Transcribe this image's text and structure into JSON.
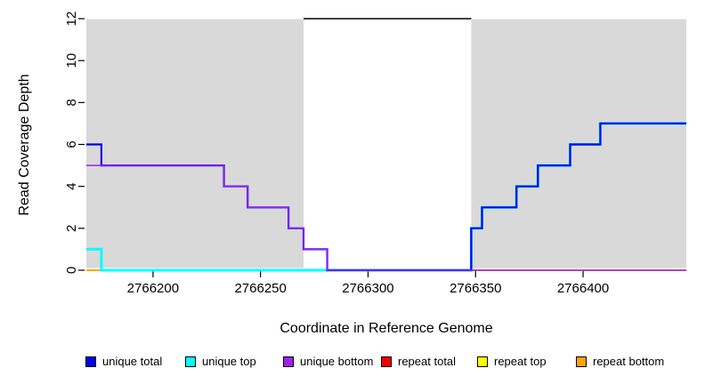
{
  "chart_data": {
    "type": "line",
    "subtype": "step-coverage",
    "title": "",
    "xlabel": "Coordinate in Reference Genome",
    "ylabel": "Read Coverage Depth",
    "xlim": [
      2766169,
      2766448
    ],
    "ylim": [
      0,
      12
    ],
    "x_ticks": [
      {
        "value": 2766200,
        "label": "2766200"
      },
      {
        "value": 2766250,
        "label": "2766250"
      },
      {
        "value": 2766300,
        "label": "2766300"
      },
      {
        "value": 2766350,
        "label": "2766350"
      },
      {
        "value": 2766400,
        "label": "2766400"
      }
    ],
    "y_ticks": [
      {
        "value": 0,
        "label": "0"
      },
      {
        "value": 2,
        "label": "2"
      },
      {
        "value": 4,
        "label": "4"
      },
      {
        "value": 6,
        "label": "6"
      },
      {
        "value": 8,
        "label": "8"
      },
      {
        "value": 10,
        "label": "10"
      },
      {
        "value": 12,
        "label": "12"
      }
    ],
    "grid": false,
    "background_color": "#ffffff",
    "shaded_regions": [
      {
        "start": 2766169,
        "end": 2766270,
        "color": "#d9d9d9"
      },
      {
        "start": 2766348,
        "end": 2766448,
        "color": "#d9d9d9"
      }
    ],
    "top_marker": {
      "y": 12,
      "start": 2766270,
      "end": 2766348,
      "color": "#000000"
    },
    "series": [
      {
        "key": "repeat_total",
        "name": "repeat total",
        "color": "#ee0000",
        "steps": [
          [
            2766169,
            0
          ],
          [
            2766448,
            0
          ]
        ]
      },
      {
        "key": "repeat_top",
        "name": "repeat top",
        "color": "#ffff00",
        "steps": [
          [
            2766169,
            0
          ],
          [
            2766448,
            0
          ]
        ]
      },
      {
        "key": "repeat_bottom",
        "name": "repeat bottom",
        "color": "#ffa500",
        "steps": [
          [
            2766169,
            0
          ],
          [
            2766448,
            0
          ]
        ]
      },
      {
        "key": "unique_top",
        "name": "unique top",
        "color": "#00ffff",
        "steps": [
          [
            2766169,
            1
          ],
          [
            2766176,
            0
          ],
          [
            2766348,
            2
          ],
          [
            2766353,
            3
          ],
          [
            2766369,
            4
          ],
          [
            2766379,
            5
          ],
          [
            2766394,
            6
          ],
          [
            2766408,
            7
          ],
          [
            2766448,
            7
          ]
        ]
      },
      {
        "key": "unique_total",
        "name": "unique total",
        "color": "#0000ee",
        "steps": [
          [
            2766169,
            6
          ],
          [
            2766176,
            5
          ],
          [
            2766233,
            4
          ],
          [
            2766244,
            3
          ],
          [
            2766263,
            2
          ],
          [
            2766270,
            1
          ],
          [
            2766281,
            0
          ],
          [
            2766348,
            2
          ],
          [
            2766353,
            3
          ],
          [
            2766369,
            4
          ],
          [
            2766379,
            5
          ],
          [
            2766394,
            6
          ],
          [
            2766408,
            7
          ],
          [
            2766448,
            7
          ]
        ]
      },
      {
        "key": "unique_bottom",
        "name": "unique bottom",
        "color": "#a020f0",
        "steps": [
          [
            2766169,
            5
          ],
          [
            2766233,
            4
          ],
          [
            2766244,
            3
          ],
          [
            2766263,
            2
          ],
          [
            2766270,
            1
          ],
          [
            2766281,
            0
          ],
          [
            2766448,
            0
          ]
        ]
      }
    ],
    "legend": {
      "position": "bottom",
      "entries": [
        {
          "key": "unique_total",
          "label": "unique total",
          "color": "#0000ee"
        },
        {
          "key": "unique_top",
          "label": "unique top",
          "color": "#00ffff"
        },
        {
          "key": "unique_bottom",
          "label": "unique bottom",
          "color": "#a020f0"
        },
        {
          "key": "repeat_total",
          "label": "repeat total",
          "color": "#ee0000"
        },
        {
          "key": "repeat_top",
          "label": "repeat top",
          "color": "#ffff00"
        },
        {
          "key": "repeat_bottom",
          "label": "repeat bottom",
          "color": "#ffa500"
        }
      ]
    }
  }
}
